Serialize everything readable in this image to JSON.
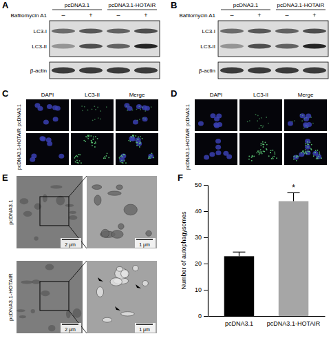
{
  "panels": {
    "blots": [
      {
        "label": "A",
        "groups": [
          "pcDNA3.1",
          "pcDNA3.1-HOTAIR"
        ],
        "treatment": "Bafilomycin A1",
        "lanes": [
          "–",
          "+",
          "–",
          "+"
        ],
        "bands": [
          "LC3-I",
          "LC3-II",
          "β-actin"
        ]
      },
      {
        "label": "B",
        "groups": [
          "pcDNA3.1",
          "pcDNA3.1-HOTAIR"
        ],
        "treatment": "Bafilomycin A1",
        "lanes": [
          "–",
          "+",
          "–",
          "+"
        ],
        "bands": [
          "LC3-I",
          "LC3-II",
          "β-actin"
        ]
      }
    ],
    "fluorescence": [
      {
        "label": "C",
        "channels": [
          "DAPI",
          "LC3-II",
          "Merge"
        ],
        "rows": [
          "pcDNA3.1",
          "pcDNA3.1-HOTAIR"
        ]
      },
      {
        "label": "D",
        "channels": [
          "DAPI",
          "LC3-II",
          "Merge"
        ],
        "rows": [
          "pcDNA3.1",
          "pcDNA3.1-HOTAIR"
        ]
      }
    ],
    "tem": {
      "label": "E",
      "rows": [
        "pcDNA3.1",
        "pcDNA3.1-HOTAIR"
      ],
      "scale_bars": [
        "2 μm",
        "1 μm"
      ]
    },
    "chart_label": "F"
  },
  "chart_data": {
    "type": "bar",
    "categories": [
      "pcDNA3.1",
      "pcDNA3.1-HOTAIR"
    ],
    "values": [
      22.8,
      43.8
    ],
    "errors": [
      1.6,
      3.2
    ],
    "colors": [
      "#000000",
      "#a6a6a6"
    ],
    "significance": [
      null,
      "*"
    ],
    "ylabel": "Number of autophagysomes",
    "ylim": [
      0,
      50
    ],
    "yticks": [
      0,
      10,
      20,
      30,
      40,
      50
    ],
    "grid": false
  }
}
